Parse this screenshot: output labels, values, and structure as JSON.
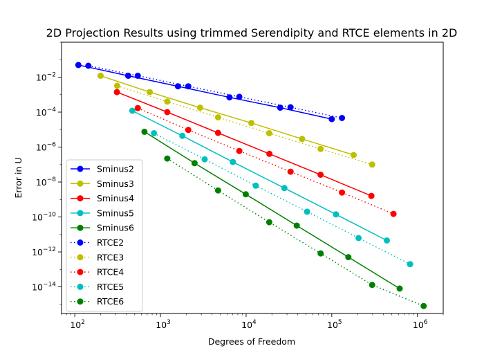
{
  "chart_data": {
    "type": "line",
    "title": "2D Projection Results using trimmed Serendipity and RTCE elements in 2D",
    "xlabel": "Degrees of Freedom",
    "ylabel": "Error in U",
    "xscale": "log",
    "yscale": "log",
    "xlim": [
      70,
      2000000
    ],
    "ylim": [
      3e-16,
      1.0
    ],
    "xticks": [
      {
        "value": 100,
        "base": "10",
        "exp": "2"
      },
      {
        "value": 1000,
        "base": "10",
        "exp": "3"
      },
      {
        "value": 10000,
        "base": "10",
        "exp": "4"
      },
      {
        "value": 100000,
        "base": "10",
        "exp": "5"
      },
      {
        "value": 1000000,
        "base": "10",
        "exp": "6"
      }
    ],
    "yticks": [
      {
        "value": 1e-14,
        "base": "10",
        "exp": "−14"
      },
      {
        "value": 1e-12,
        "base": "10",
        "exp": "−12"
      },
      {
        "value": 1e-10,
        "base": "10",
        "exp": "−10"
      },
      {
        "value": 1e-08,
        "base": "10",
        "exp": "−8"
      },
      {
        "value": 1e-06,
        "base": "10",
        "exp": "−6"
      },
      {
        "value": 0.0001,
        "base": "10",
        "exp": "−4"
      },
      {
        "value": 0.01,
        "base": "10",
        "exp": "−2"
      }
    ],
    "grid": false,
    "legend_position": "lower-left",
    "series": [
      {
        "name": "Sminus2",
        "color": "#0000ff",
        "linestyle": "solid",
        "x": [
          110,
          420,
          1600,
          6400,
          25000,
          100000
        ],
        "y": [
          0.05,
          0.012,
          0.003,
          0.0007,
          0.00018,
          4e-05
        ]
      },
      {
        "name": "Sminus3",
        "color": "#bfbf00",
        "linestyle": "solid",
        "x": [
          200,
          750,
          2900,
          11500,
          45000,
          180000
        ],
        "y": [
          0.012,
          0.0014,
          0.00018,
          2.4e-05,
          2.9e-06,
          3.5e-07
        ]
      },
      {
        "name": "Sminus4",
        "color": "#ff0000",
        "linestyle": "solid",
        "x": [
          310,
          1200,
          4700,
          18700,
          74000,
          290000
        ],
        "y": [
          0.0014,
          0.0001,
          6.5e-06,
          4.1e-07,
          2.6e-08,
          1.6e-09
        ]
      },
      {
        "name": "Sminus5",
        "color": "#00bfbf",
        "linestyle": "solid",
        "x": [
          470,
          1800,
          7000,
          28000,
          112000,
          440000
        ],
        "y": [
          0.00012,
          4.4e-06,
          1.4e-07,
          4.5e-09,
          1.4e-10,
          4.5e-12
        ]
      },
      {
        "name": "Sminus6",
        "color": "#008000",
        "linestyle": "solid",
        "x": [
          650,
          2500,
          9900,
          39000,
          156000,
          620000
        ],
        "y": [
          7.5e-06,
          1.2e-07,
          2e-09,
          3.2e-11,
          5e-13,
          8e-15
        ]
      },
      {
        "name": "RTCE2",
        "color": "#0000ff",
        "linestyle": "dotted",
        "x": [
          144,
          544,
          2112,
          8320,
          33024,
          131584
        ],
        "y": [
          0.045,
          0.012,
          0.003,
          0.00075,
          0.00019,
          4.6e-05
        ]
      },
      {
        "name": "RTCE3",
        "color": "#bfbf00",
        "linestyle": "dotted",
        "x": [
          312,
          1200,
          4704,
          18624,
          74112,
          295680
        ],
        "y": [
          0.0032,
          0.0004,
          5e-05,
          6.2e-06,
          7.8e-07,
          1e-07
        ]
      },
      {
        "name": "RTCE4",
        "color": "#ff0000",
        "linestyle": "dotted",
        "x": [
          544,
          2112,
          8320,
          33024,
          131584,
          525312
        ],
        "y": [
          0.00017,
          9.5e-06,
          6e-07,
          3.9e-08,
          2.5e-09,
          1.5e-10
        ]
      },
      {
        "name": "RTCE5",
        "color": "#00bfbf",
        "linestyle": "dotted",
        "x": [
          840,
          3280,
          12960,
          51520,
          205440,
          820480
        ],
        "y": [
          6.2e-06,
          2e-07,
          6.2e-09,
          2e-10,
          6.2e-12,
          2e-13
        ]
      },
      {
        "name": "RTCE6",
        "color": "#008000",
        "linestyle": "dotted",
        "x": [
          1200,
          4704,
          18624,
          74112,
          295680,
          1181184
        ],
        "y": [
          2.2e-07,
          3.3e-09,
          5e-11,
          8.2e-13,
          1.3e-14,
          8e-16
        ]
      }
    ]
  }
}
